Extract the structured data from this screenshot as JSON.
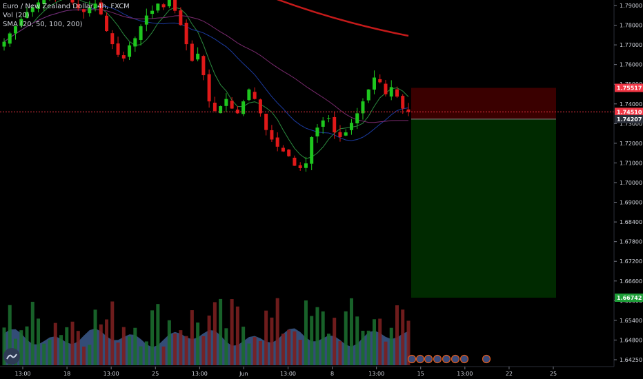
{
  "legend": {
    "title": "Euro / New Zealand Dollar, 4h, FXCM",
    "vol": "Vol (20)",
    "sma": "SMA (20, 50, 100, 200)"
  },
  "colors": {
    "up": "#1ec71e",
    "down": "#e01919",
    "vol_up": "#1b6b2e",
    "vol_down": "#7a1f1f",
    "vol_ma_fill": "#3c5a8c",
    "sma20": "#2b8a3e",
    "sma50": "#1b3a9e",
    "sma100": "#7a2a6e",
    "sma200": "#c41a1a",
    "stop_zone": "#3a0000",
    "target_zone": "#002a00",
    "current_price_tag": "#f23645",
    "stop_tag": "#f23645",
    "target_tag": "#1e9e38",
    "entry_tag": "#2a2e39"
  },
  "chart_data": {
    "type": "candlestick",
    "symbol": "EURNZD",
    "timeframe": "4h",
    "source": "FXCM",
    "x_tick_labels": [
      "13:00",
      "18",
      "13:00",
      "25",
      "13:00",
      "Jun",
      "13:00",
      "8",
      "13:00",
      "15",
      "13:00",
      "22",
      "25"
    ],
    "y_tick_labels": [
      "1.79000",
      "1.78000",
      "1.77000",
      "1.76000",
      "1.75000",
      "1.74000",
      "1.73000",
      "1.72000",
      "1.71000",
      "1.70000",
      "1.69000",
      "1.68400",
      "1.67800",
      "1.67200",
      "1.66600",
      "1.66000",
      "1.65400",
      "1.64800",
      "1.64250"
    ],
    "price_tags": {
      "stop": "1.75517",
      "current": "1.74510",
      "entry": "1.74207",
      "target": "1.66742"
    },
    "position": {
      "type": "short",
      "entry": 1.74207,
      "stop": 1.75517,
      "target": 1.66742
    },
    "close_path": [
      1.7745,
      1.778,
      1.781,
      1.784,
      1.787,
      1.789,
      1.791,
      1.792,
      1.7935,
      1.7925,
      1.794,
      1.7945,
      1.791,
      1.7885,
      1.787,
      1.789,
      1.7905,
      1.786,
      1.779,
      1.7735,
      1.769,
      1.7675,
      1.773,
      1.776,
      1.781,
      1.7855,
      1.7875,
      1.7905,
      1.789,
      1.7935,
      1.7875,
      1.7815,
      1.7735,
      1.7665,
      1.7695,
      1.7605,
      1.7495,
      1.7455,
      1.7475,
      1.7505,
      1.7465,
      1.7445,
      1.7495,
      1.7545,
      1.7505,
      1.7445,
      1.7375,
      1.7335,
      1.7305,
      1.7285,
      1.7265,
      1.7225,
      1.7215,
      1.7235,
      1.7345,
      1.7385,
      1.7415,
      1.7425,
      1.7365,
      1.7345,
      1.7365,
      1.7405,
      1.7445,
      1.7495,
      1.7545,
      1.7595,
      1.7575,
      1.7525,
      1.7555,
      1.7515,
      1.7465,
      1.7451
    ],
    "sma200_endpoints": [
      1.794,
      1.777
    ]
  }
}
